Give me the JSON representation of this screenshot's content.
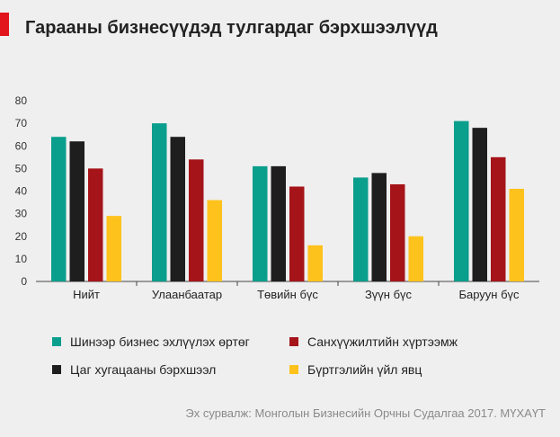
{
  "title": "Гарааны бизнесүүдэд тулгардаг бэрхшээлүүд",
  "source": "Эх сурвалж: Монголын Бизнесийн Орчны Судалгаа 2017. МҮХАҮТ",
  "colors": {
    "accent": "#e2141c",
    "background": "#efefef"
  },
  "chart_data": {
    "type": "bar",
    "title": "Гарааны бизнесүүдэд тулгардаг бэрхшээлүүд",
    "xlabel": "",
    "ylabel": "",
    "ylim": [
      0,
      80
    ],
    "yticks": [
      "0",
      "10",
      "20",
      "30",
      "40",
      "50",
      "60",
      "70",
      "80"
    ],
    "grid": false,
    "legend_position": "bottom",
    "categories": [
      "Нийт",
      "Улаанбаатар",
      "Төвийн бүс",
      "Зүүн бүс",
      "Баруун бүс"
    ],
    "series": [
      {
        "name": "Шинээр бизнес эхлүүлэх өртөг",
        "color": "#0a9e8d",
        "values": [
          64,
          70,
          51,
          46,
          71
        ]
      },
      {
        "name": "Цаг хугацааны бэрхшээл",
        "color": "#1e1e1e",
        "values": [
          62,
          64,
          51,
          48,
          68
        ]
      },
      {
        "name": "Санхүүжилтийн хүртээмж",
        "color": "#a51419",
        "values": [
          50,
          54,
          42,
          43,
          55
        ]
      },
      {
        "name": "Бүртгэлийн үйл явц",
        "color": "#fec21c",
        "values": [
          29,
          36,
          16,
          20,
          41
        ]
      }
    ]
  }
}
